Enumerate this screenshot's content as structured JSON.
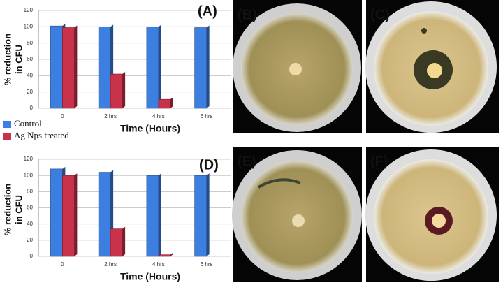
{
  "chart_data": [
    {
      "type": "bar",
      "title": "(A)",
      "ylabel": [
        "% reduction",
        "in CFU"
      ],
      "xlabel": "Time (Hours)",
      "categories": [
        "0",
        "2 hrs",
        "4 hrs",
        "6 hrs"
      ],
      "series": [
        {
          "name": "Control",
          "color": "#3d7fe0",
          "values": [
            101,
            100,
            100,
            99
          ]
        },
        {
          "name": "Ag Nps treated",
          "color": "#c8324a",
          "values": [
            99,
            42,
            11,
            null
          ]
        }
      ],
      "ylim": [
        0,
        120
      ],
      "yticks": [
        0,
        20,
        40,
        60,
        80,
        100,
        120
      ],
      "grid": true,
      "legend": "bottom-left"
    },
    {
      "type": "bar",
      "title": "(D)",
      "ylabel": [
        "% reduction",
        "in CFU"
      ],
      "xlabel": "Time (Hours)",
      "categories": [
        "0",
        "2 hrs",
        "4 hrs",
        "6 hrs"
      ],
      "series": [
        {
          "color": "#3d7fe0",
          "values": [
            108,
            104,
            100,
            100
          ]
        },
        {
          "color": "#c8324a",
          "values": [
            100,
            34,
            2,
            null
          ]
        }
      ],
      "ylim": [
        0,
        120
      ],
      "yticks": [
        0,
        20,
        40,
        60,
        80,
        100,
        120
      ],
      "grid": true
    }
  ],
  "photo_panels": [
    {
      "label": "(B)"
    },
    {
      "label": "(C)"
    },
    {
      "label": "(E)"
    },
    {
      "label": "(F)"
    }
  ]
}
